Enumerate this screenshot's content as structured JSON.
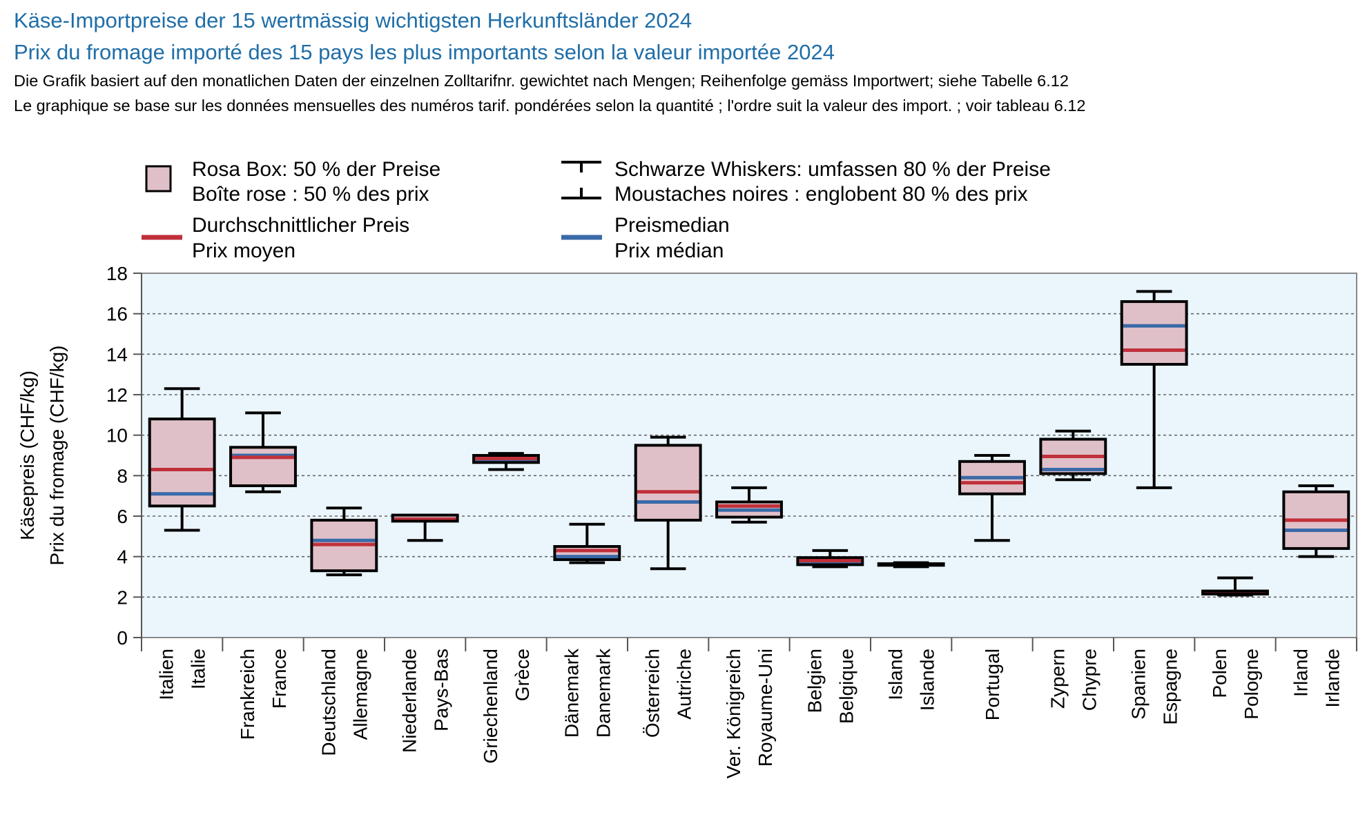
{
  "chart_data": {
    "type": "box",
    "title": "Käse-Importpreise der 15 wertmässig wichtigsten Herkunftsländer 2024",
    "title_fr": "Prix du fromage importé des 15 pays les plus importants selon la valeur importée 2024",
    "note_de": "Die Grafik basiert auf den monatlichen Daten der einzelnen Zolltarifnr. gewichtet nach Mengen; Reihenfolge gemäss Importwert; siehe Tabelle 6.12",
    "note_fr": "Le graphique se base sur les données mensuelles des numéros tarif. pondérées selon la quantité ; l'ordre suit la valeur des import. ; voir tableau 6.12",
    "ylabel_de": "Käsepreis (CHF/kg)",
    "ylabel_fr": "Prix du fromage (CHF/kg)",
    "ylim": [
      0,
      18
    ],
    "yticks": [
      "0",
      "2",
      "4",
      "6",
      "8",
      "10",
      "12",
      "14",
      "16",
      "18"
    ],
    "grid": "horizontal dashed",
    "legend": {
      "box_de": "Rosa Box: 50 % der Preise",
      "box_fr": "Boîte rose : 50 % des prix",
      "whisker_de": "Schwarze Whiskers: umfassen 80 % der Preise",
      "whisker_fr": "Moustaches noires : englobent 80 % des prix",
      "mean_de": "Durchschnittlicher Preis",
      "mean_fr": "Prix moyen",
      "median_de": "Preismedian",
      "median_fr": "Prix médian"
    },
    "colors": {
      "box_fill": "#e0c0c8",
      "mean": "#c0303a",
      "median": "#3a6aa8",
      "plot_bg": "#eaf5fc",
      "title": "#1f6ea8"
    },
    "categories": [
      {
        "de": "Italien",
        "fr": "Italie",
        "wlo": 5.3,
        "q1": 6.5,
        "q3": 10.8,
        "whi": 12.3,
        "mean": 8.3,
        "median": 7.1
      },
      {
        "de": "Frankreich",
        "fr": "France",
        "wlo": 7.2,
        "q1": 7.5,
        "q3": 9.4,
        "whi": 11.1,
        "mean": 8.9,
        "median": 9.0
      },
      {
        "de": "Deutschland",
        "fr": "Allemagne",
        "wlo": 3.1,
        "q1": 3.3,
        "q3": 5.8,
        "whi": 6.4,
        "mean": 4.6,
        "median": 4.8
      },
      {
        "de": "Niederlande",
        "fr": "Pays-Bas",
        "wlo": 4.8,
        "q1": 5.75,
        "q3": 6.05,
        "whi": 6.0,
        "mean": 5.85,
        "median": 5.85
      },
      {
        "de": "Griechenland",
        "fr": "Grèce",
        "wlo": 8.3,
        "q1": 8.65,
        "q3": 9.0,
        "whi": 9.1,
        "mean": 8.85,
        "median": 8.8
      },
      {
        "de": "Dänemark",
        "fr": "Danemark",
        "wlo": 3.7,
        "q1": 3.85,
        "q3": 4.5,
        "whi": 5.6,
        "mean": 4.3,
        "median": 4.0
      },
      {
        "de": "Österreich",
        "fr": "Autriche",
        "wlo": 3.4,
        "q1": 5.8,
        "q3": 9.5,
        "whi": 9.9,
        "mean": 7.2,
        "median": 6.7
      },
      {
        "de": "Ver. Königreich",
        "fr": "Royaume-Uni",
        "wlo": 5.7,
        "q1": 5.95,
        "q3": 6.7,
        "whi": 7.4,
        "mean": 6.5,
        "median": 6.3
      },
      {
        "de": "Belgien",
        "fr": "Belgique",
        "wlo": 3.5,
        "q1": 3.6,
        "q3": 3.95,
        "whi": 4.3,
        "mean": 3.8,
        "median": 3.75
      },
      {
        "de": "Island",
        "fr": "Islande",
        "wlo": 3.5,
        "q1": 3.57,
        "q3": 3.65,
        "whi": 3.7,
        "mean": 3.6,
        "median": 3.6
      },
      {
        "de": "Portugal",
        "fr": "",
        "wlo": 4.8,
        "q1": 7.1,
        "q3": 8.7,
        "whi": 9.0,
        "mean": 7.65,
        "median": 7.9
      },
      {
        "de": "Zypern",
        "fr": "Chypre",
        "wlo": 7.8,
        "q1": 8.1,
        "q3": 9.8,
        "whi": 10.2,
        "mean": 8.95,
        "median": 8.3
      },
      {
        "de": "Spanien",
        "fr": "Espagne",
        "wlo": 7.4,
        "q1": 13.5,
        "q3": 16.6,
        "whi": 17.1,
        "mean": 14.2,
        "median": 15.4
      },
      {
        "de": "Polen",
        "fr": "Pologne",
        "wlo": 2.1,
        "q1": 2.15,
        "q3": 2.3,
        "whi": 2.95,
        "mean": 2.25,
        "median": 2.2
      },
      {
        "de": "Irland",
        "fr": "Irlande",
        "wlo": 4.0,
        "q1": 4.4,
        "q3": 7.2,
        "whi": 7.5,
        "mean": 5.8,
        "median": 5.3
      }
    ]
  }
}
